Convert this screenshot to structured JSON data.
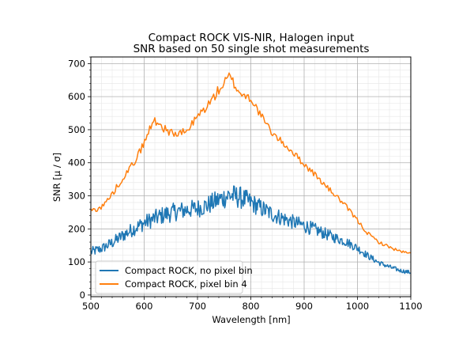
{
  "chart_data": {
    "type": "line",
    "title": "Compact ROCK VIS-NIR, Halogen input",
    "subtitle": "SNR based on 50 single shot measurements",
    "xlabel": "Wavelength [nm]",
    "ylabel": "SNR [μ / σ]",
    "xlim": [
      500,
      1100
    ],
    "ylim": [
      -5,
      720
    ],
    "x_ticks": [
      "500",
      "600",
      "700",
      "800",
      "900",
      "1000",
      "1100"
    ],
    "y_ticks": [
      "0",
      "100",
      "200",
      "300",
      "400",
      "500",
      "600",
      "700"
    ],
    "grid": true,
    "minor_grid": true,
    "legend_position": "lower left",
    "series": [
      {
        "name": "Compact ROCK, no pixel bin",
        "color": "#1f77b4",
        "x": [
          500,
          520,
          540,
          560,
          580,
          600,
          620,
          640,
          660,
          680,
          700,
          720,
          740,
          760,
          780,
          800,
          820,
          840,
          860,
          880,
          900,
          920,
          940,
          960,
          980,
          1000,
          1020,
          1040,
          1060,
          1080,
          1100
        ],
        "y": [
          130,
          140,
          158,
          180,
          200,
          218,
          232,
          244,
          252,
          258,
          262,
          272,
          288,
          302,
          295,
          280,
          262,
          245,
          232,
          220,
          210,
          198,
          185,
          172,
          160,
          142,
          118,
          98,
          85,
          74,
          68
        ],
        "noise": [
          15,
          15,
          18,
          20,
          22,
          24,
          26,
          28,
          28,
          28,
          28,
          30,
          32,
          36,
          34,
          30,
          28,
          26,
          24,
          22,
          22,
          20,
          18,
          16,
          14,
          13,
          10,
          8,
          7,
          6,
          6
        ]
      },
      {
        "name": "Compact ROCK, pixel bin 4",
        "color": "#ff7f0e",
        "x": [
          500,
          520,
          540,
          560,
          580,
          600,
          610,
          620,
          640,
          660,
          680,
          700,
          720,
          740,
          760,
          780,
          800,
          820,
          840,
          860,
          880,
          900,
          920,
          940,
          960,
          980,
          1000,
          1020,
          1040,
          1060,
          1080,
          1100
        ],
        "y": [
          255,
          265,
          305,
          355,
          398,
          460,
          500,
          530,
          500,
          485,
          495,
          540,
          575,
          620,
          660,
          610,
          595,
          540,
          490,
          460,
          430,
          395,
          365,
          330,
          300,
          265,
          225,
          185,
          160,
          145,
          132,
          125
        ],
        "noise": [
          8,
          8,
          9,
          10,
          10,
          12,
          14,
          14,
          12,
          12,
          12,
          13,
          14,
          16,
          18,
          14,
          13,
          12,
          10,
          10,
          10,
          9,
          9,
          8,
          8,
          7,
          7,
          6,
          5,
          5,
          4,
          4
        ]
      }
    ]
  }
}
